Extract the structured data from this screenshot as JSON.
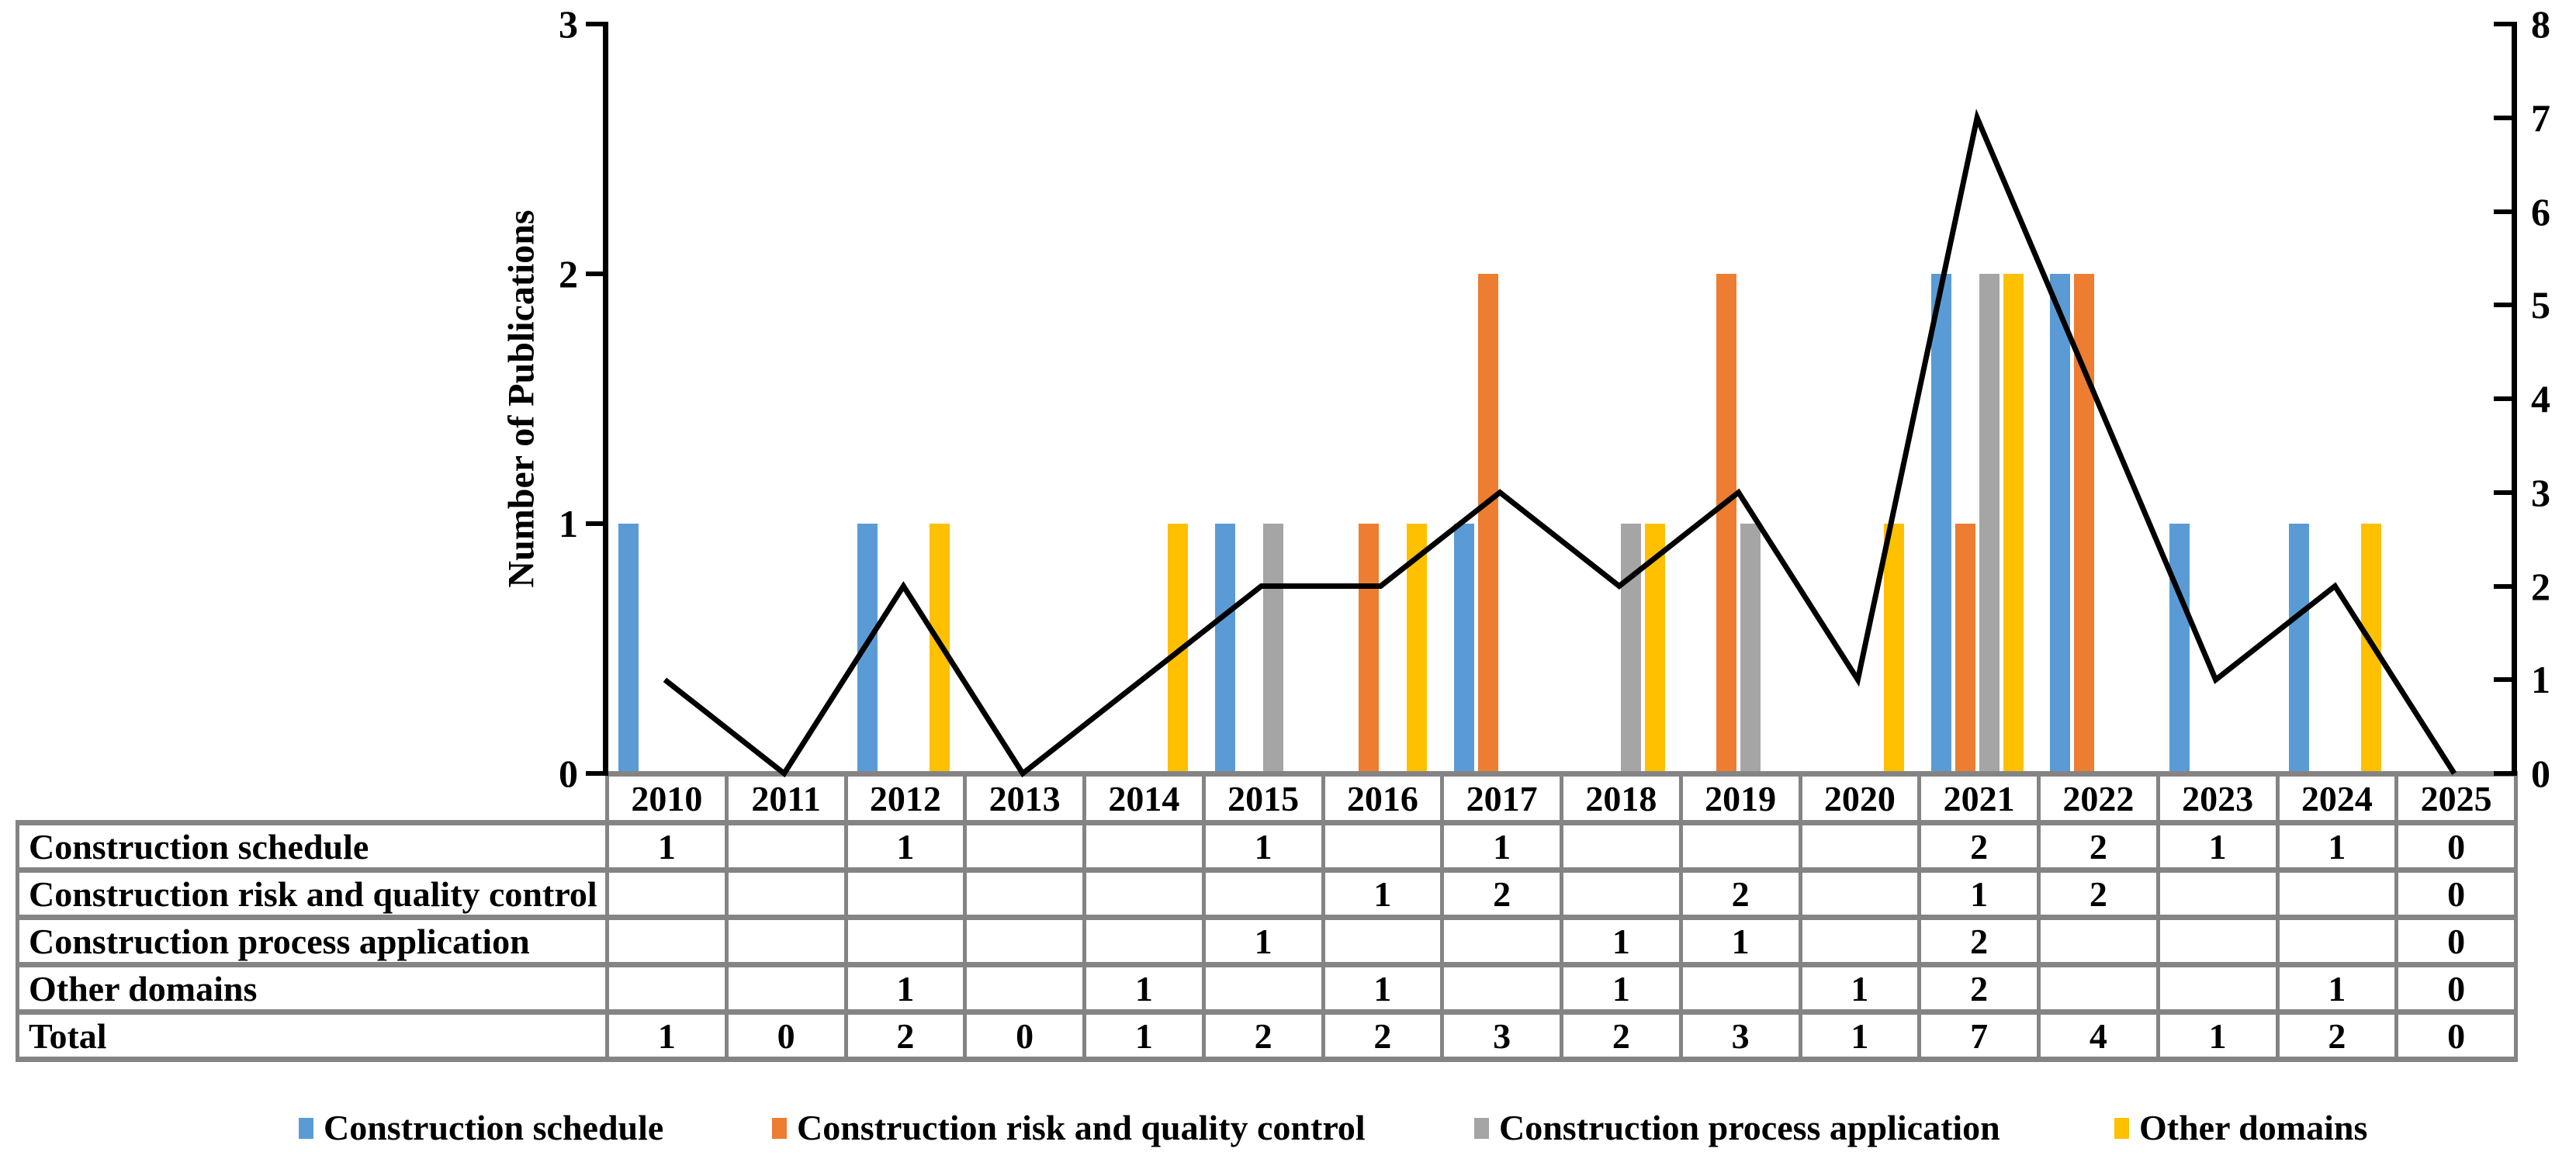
{
  "chart_data": {
    "type": "bar+line combo",
    "categories": [
      "2010",
      "2011",
      "2012",
      "2013",
      "2014",
      "2015",
      "2016",
      "2017",
      "2018",
      "2019",
      "2020",
      "2021",
      "2022",
      "2023",
      "2024",
      "2025"
    ],
    "series": [
      {
        "name": "Construction schedule",
        "color": "#5B9BD5",
        "values": [
          1,
          0,
          1,
          0,
          0,
          1,
          0,
          1,
          0,
          0,
          0,
          2,
          2,
          1,
          1,
          0
        ]
      },
      {
        "name": "Construction risk and quality control",
        "color": "#ED7D31",
        "values": [
          0,
          0,
          0,
          0,
          0,
          0,
          1,
          2,
          0,
          2,
          0,
          1,
          2,
          0,
          0,
          0
        ]
      },
      {
        "name": "Construction process application",
        "color": "#A5A5A5",
        "values": [
          0,
          0,
          0,
          0,
          0,
          1,
          0,
          0,
          1,
          1,
          0,
          2,
          0,
          0,
          0,
          0
        ]
      },
      {
        "name": "Other domains",
        "color": "#FFC000",
        "values": [
          0,
          0,
          1,
          0,
          1,
          0,
          1,
          0,
          1,
          0,
          1,
          2,
          0,
          0,
          1,
          0
        ]
      }
    ],
    "line_series": {
      "name": "Total",
      "color": "#000000",
      "axis": "right",
      "values": [
        1,
        0,
        2,
        0,
        1,
        2,
        2,
        3,
        2,
        3,
        1,
        7,
        4,
        1,
        2,
        0
      ]
    },
    "left_axis": {
      "label": "Number of Publications",
      "min": 0,
      "max": 3,
      "tick_labels": [
        "3",
        "2",
        "1",
        "0"
      ]
    },
    "right_axis": {
      "min": 0,
      "max": 8,
      "tick_labels": [
        "8",
        "7",
        "6",
        "5",
        "4",
        "3",
        "2",
        "1",
        "0"
      ]
    },
    "grid": "off",
    "legend_position": "bottom"
  },
  "table": {
    "header_years": [
      "2010",
      "2011",
      "2012",
      "2013",
      "2014",
      "2015",
      "2016",
      "2017",
      "2018",
      "2019",
      "2020",
      "2021",
      "2022",
      "2023",
      "2024",
      "2025"
    ],
    "rows": [
      {
        "label": "Construction schedule",
        "cells": [
          "1",
          "",
          "1",
          "",
          "",
          "1",
          "",
          "1",
          "",
          "",
          "",
          "2",
          "2",
          "1",
          "1",
          "0"
        ]
      },
      {
        "label": "Construction risk and quality control",
        "cells": [
          "",
          "",
          "",
          "",
          "",
          "",
          "1",
          "2",
          "",
          "2",
          "",
          "1",
          "2",
          "",
          "",
          "0"
        ]
      },
      {
        "label": "Construction process application",
        "cells": [
          "",
          "",
          "",
          "",
          "",
          "1",
          "",
          "",
          "1",
          "1",
          "",
          "2",
          "",
          "",
          "",
          "0"
        ]
      },
      {
        "label": "Other domains",
        "cells": [
          "",
          "",
          "1",
          "",
          "1",
          "",
          "1",
          "",
          "1",
          "",
          "1",
          "2",
          "",
          "",
          "1",
          "0"
        ]
      },
      {
        "label": "Total",
        "cells": [
          "1",
          "0",
          "2",
          "0",
          "1",
          "2",
          "2",
          "3",
          "2",
          "3",
          "1",
          "7",
          "4",
          "1",
          "2",
          "0"
        ]
      }
    ]
  },
  "legend": {
    "items": [
      {
        "label": "Construction schedule",
        "color": "#5B9BD5"
      },
      {
        "label": "Construction risk and quality control",
        "color": "#ED7D31"
      },
      {
        "label": "Construction process application",
        "color": "#A5A5A5"
      },
      {
        "label": "Other domains",
        "color": "#FFC000"
      }
    ]
  }
}
